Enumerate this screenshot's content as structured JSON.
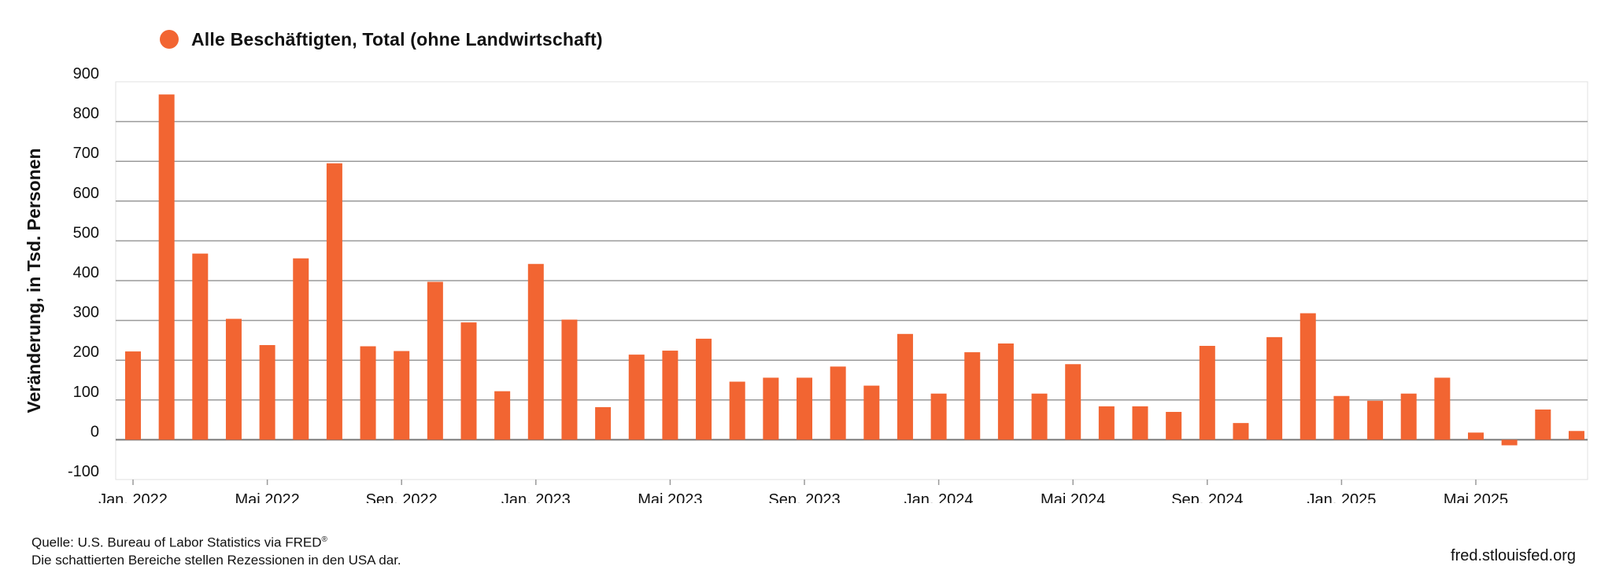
{
  "chart_data": {
    "type": "bar",
    "legend": [
      {
        "name": "Alle Beschäftigten, Total (ohne Landwirtschaft)",
        "color": "#F26532"
      }
    ],
    "ylabel": "Veränderung, in Tsd. Personen",
    "ylim": [
      -100,
      900
    ],
    "yticks": [
      900,
      800,
      700,
      600,
      500,
      400,
      300,
      200,
      100,
      0,
      -100
    ],
    "xtick_labels": [
      {
        "label": "Jan. 2022",
        "index": 0
      },
      {
        "label": "Mai 2022",
        "index": 4
      },
      {
        "label": "Sep. 2022",
        "index": 8
      },
      {
        "label": "Jan. 2023",
        "index": 12
      },
      {
        "label": "Mai 2023",
        "index": 16
      },
      {
        "label": "Sep. 2023",
        "index": 20
      },
      {
        "label": "Jan. 2024",
        "index": 24
      },
      {
        "label": "Mai 2024",
        "index": 28
      },
      {
        "label": "Sep. 2024",
        "index": 32
      },
      {
        "label": "Jan. 2025",
        "index": 36
      },
      {
        "label": "Mai 2025",
        "index": 40
      }
    ],
    "categories": [
      "2022-01",
      "2022-02",
      "2022-03",
      "2022-04",
      "2022-05",
      "2022-06",
      "2022-07",
      "2022-08",
      "2022-09",
      "2022-10",
      "2022-11",
      "2022-12",
      "2023-01",
      "2023-02",
      "2023-03",
      "2023-04",
      "2023-05",
      "2023-06",
      "2023-07",
      "2023-08",
      "2023-09",
      "2023-10",
      "2023-11",
      "2023-12",
      "2024-01",
      "2024-02",
      "2024-03",
      "2024-04",
      "2024-05",
      "2024-06",
      "2024-07",
      "2024-08",
      "2024-09",
      "2024-10",
      "2024-11",
      "2024-12",
      "2025-01",
      "2025-02",
      "2025-03",
      "2025-04",
      "2025-05",
      "2025-06",
      "2025-07",
      "2025-08"
    ],
    "values": [
      222,
      868,
      468,
      304,
      238,
      456,
      695,
      235,
      223,
      397,
      295,
      122,
      442,
      302,
      82,
      214,
      224,
      254,
      146,
      156,
      156,
      184,
      136,
      266,
      116,
      220,
      242,
      116,
      190,
      84,
      84,
      70,
      236,
      42,
      258,
      318,
      110,
      98,
      116,
      156,
      18,
      -14,
      76,
      22
    ],
    "grid": true,
    "legend_position": "top-left"
  },
  "footer": {
    "source_line1": "Quelle: U.S. Bureau of Labor Statistics via FRED",
    "source_mark": "®",
    "source_line2": "Die schattierten Bereiche stellen Rezessionen in den USA dar.",
    "url": "fred.stlouisfed.org"
  }
}
